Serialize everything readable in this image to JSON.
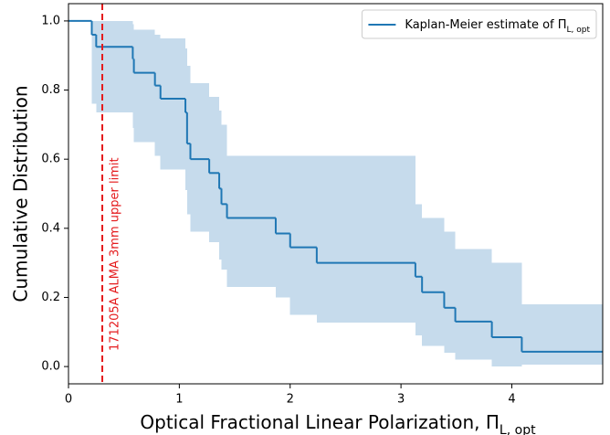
{
  "chart_data": {
    "type": "step",
    "x_label": {
      "text": "Optical Fractional Linear Polarization, Π",
      "subscript": "L, opt"
    },
    "y_label": "Cumulative Distribution",
    "x": [
      0,
      0.21,
      0.25,
      0.58,
      0.59,
      0.78,
      0.83,
      1.055,
      1.07,
      1.1,
      1.27,
      1.36,
      1.38,
      1.43,
      1.87,
      2.0,
      2.24,
      3.13,
      3.19,
      3.39,
      3.49,
      3.82,
      4.09
    ],
    "series": [
      {
        "name": "Kaplan-Meier estimate of Π",
        "name_subscript": "L, opt",
        "color": "#1f77b4",
        "values": [
          1.0,
          0.96,
          0.925,
          0.89,
          0.85,
          0.813,
          0.775,
          0.735,
          0.645,
          0.6,
          0.56,
          0.515,
          0.47,
          0.43,
          0.385,
          0.345,
          0.3,
          0.26,
          0.215,
          0.17,
          0.13,
          0.085,
          0.043
        ],
        "ci_upper": [
          1.0,
          1.0,
          1.0,
          0.99,
          0.975,
          0.96,
          0.95,
          0.92,
          0.87,
          0.82,
          0.78,
          0.74,
          0.7,
          0.61,
          0.61,
          0.61,
          0.61,
          0.47,
          0.43,
          0.39,
          0.34,
          0.3,
          0.18
        ],
        "ci_lower": [
          1.0,
          0.76,
          0.735,
          0.69,
          0.65,
          0.61,
          0.57,
          0.51,
          0.44,
          0.39,
          0.36,
          0.31,
          0.28,
          0.23,
          0.2,
          0.15,
          0.127,
          0.09,
          0.06,
          0.04,
          0.02,
          0.0,
          0.005
        ],
        "ci_color": "#c6dbec"
      }
    ],
    "annotation": {
      "x": 0.305,
      "text": "171205A ALMA 3mm upper limit",
      "color": "#e41a1c"
    },
    "xlim": [
      0,
      4.82
    ],
    "ylim": [
      -0.05,
      1.05
    ],
    "xticks": [
      0,
      1,
      2,
      3,
      4
    ],
    "yticks": [
      {
        "value": 0,
        "label": "0.0"
      },
      0.2,
      0.4,
      0.6,
      0.8,
      {
        "value": 1,
        "label": "1.0"
      }
    ],
    "legend": "upper right"
  }
}
